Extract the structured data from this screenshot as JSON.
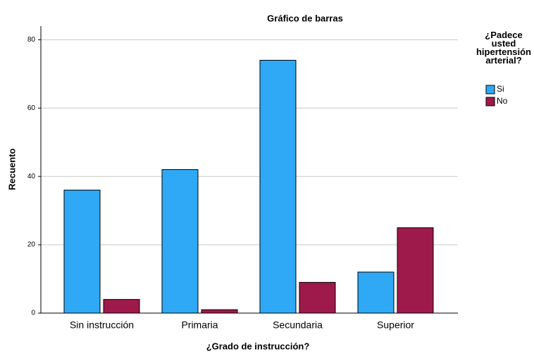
{
  "chart_data": {
    "type": "bar",
    "title": "Gráfico de barras",
    "x_label": "¿Grado de instrucción?",
    "y_label": "Recuento",
    "categories": [
      "Sin instrucción",
      "Primaria",
      "Secundaria",
      "Superior"
    ],
    "series": [
      {
        "name": "Si",
        "color": "#2fa9f5",
        "values": [
          36,
          42,
          74,
          12
        ]
      },
      {
        "name": "No",
        "color": "#9e1a4b",
        "values": [
          4,
          1,
          9,
          25
        ]
      }
    ],
    "legend_title": "¿Padece usted hipertensión arterial?",
    "legend": "right",
    "ylim": [
      0,
      84
    ],
    "yticks": [
      0,
      20,
      40,
      60,
      80
    ],
    "grid": true
  }
}
